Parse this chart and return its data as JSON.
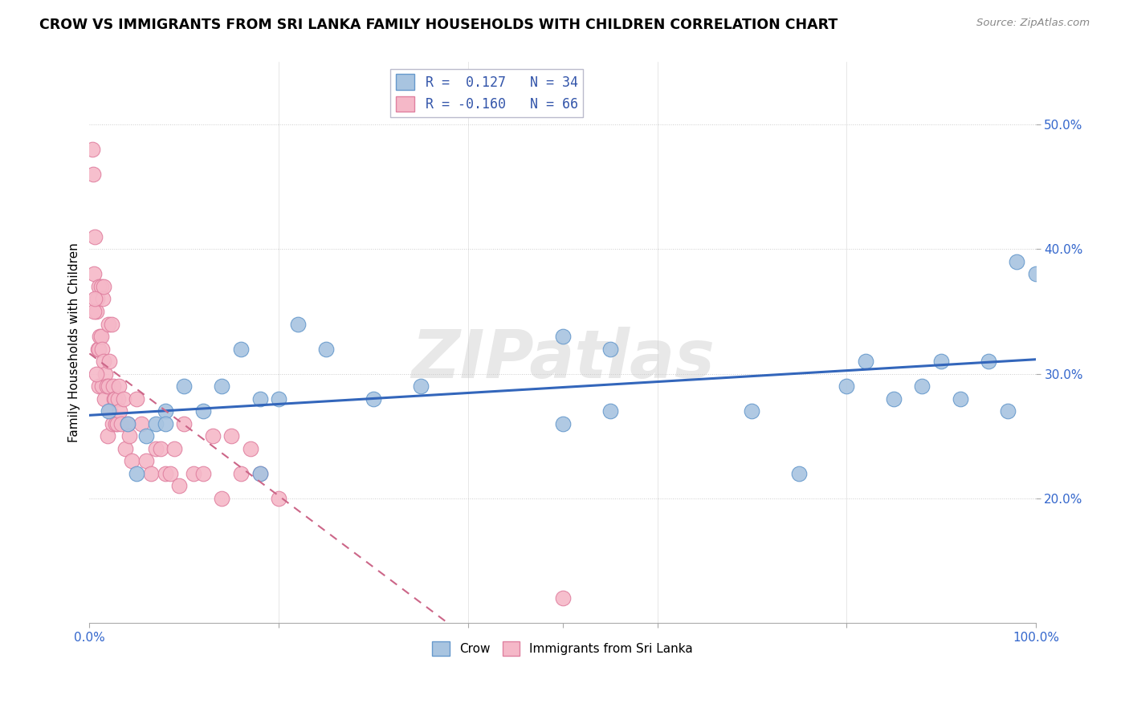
{
  "title": "CROW VS IMMIGRANTS FROM SRI LANKA FAMILY HOUSEHOLDS WITH CHILDREN CORRELATION CHART",
  "source": "Source: ZipAtlas.com",
  "ylabel": "Family Households with Children",
  "xlim": [
    0,
    100
  ],
  "ylim": [
    10,
    55
  ],
  "crow_color": "#a8c4e0",
  "crow_edge": "#6699cc",
  "srilanka_color": "#f5b8c8",
  "srilanka_edge": "#e080a0",
  "crow_line_color": "#3366bb",
  "srilanka_line_color": "#cc6688",
  "watermark": "ZIPatlas",
  "crow_x": [
    2,
    4,
    6,
    8,
    10,
    12,
    14,
    16,
    18,
    20,
    22,
    25,
    30,
    50,
    55,
    70,
    80,
    82,
    85,
    88,
    90,
    92,
    95,
    97,
    98,
    100,
    5,
    7,
    8,
    18,
    35,
    55,
    75,
    50
  ],
  "crow_y": [
    27,
    26,
    25,
    27,
    29,
    27,
    29,
    32,
    28,
    28,
    34,
    32,
    28,
    33,
    32,
    27,
    29,
    31,
    28,
    29,
    31,
    28,
    31,
    27,
    39,
    38,
    22,
    26,
    26,
    22,
    29,
    27,
    22,
    26
  ],
  "srilanka_x": [
    0.3,
    0.4,
    0.5,
    0.6,
    0.7,
    0.8,
    0.9,
    1.0,
    1.0,
    1.0,
    1.1,
    1.2,
    1.2,
    1.3,
    1.3,
    1.4,
    1.5,
    1.5,
    1.6,
    1.7,
    1.8,
    1.9,
    2.0,
    2.0,
    2.1,
    2.2,
    2.3,
    2.4,
    2.5,
    2.6,
    2.7,
    2.8,
    2.9,
    3.0,
    3.1,
    3.2,
    3.4,
    3.6,
    3.8,
    4.0,
    4.2,
    4.5,
    5.0,
    5.5,
    6.0,
    6.5,
    7.0,
    7.5,
    8.0,
    8.5,
    9.0,
    9.5,
    10.0,
    11.0,
    12.0,
    13.0,
    14.0,
    15.0,
    16.0,
    17.0,
    18.0,
    20.0,
    50.0,
    0.5,
    0.6,
    0.7
  ],
  "srilanka_y": [
    48,
    46,
    38,
    41,
    35,
    36,
    32,
    37,
    32,
    29,
    33,
    37,
    33,
    29,
    32,
    36,
    31,
    37,
    28,
    30,
    29,
    25,
    29,
    34,
    31,
    27,
    34,
    26,
    29,
    28,
    28,
    26,
    26,
    28,
    29,
    27,
    26,
    28,
    24,
    26,
    25,
    23,
    28,
    26,
    23,
    22,
    24,
    24,
    22,
    22,
    24,
    21,
    26,
    22,
    22,
    25,
    20,
    25,
    22,
    24,
    22,
    20,
    12,
    35,
    36,
    30
  ]
}
